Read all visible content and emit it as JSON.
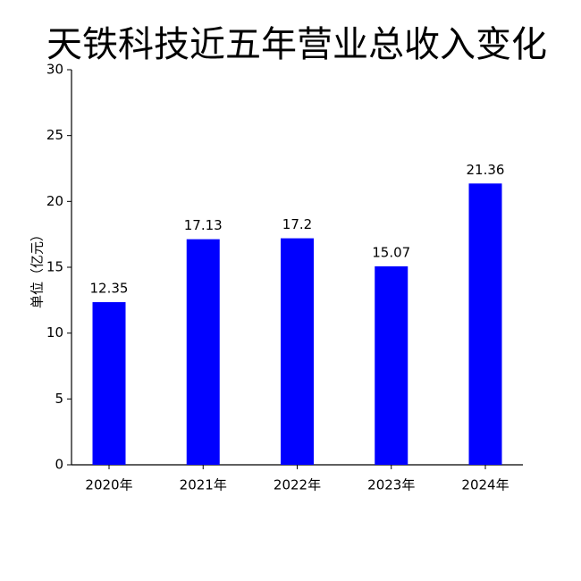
{
  "chart_data": {
    "type": "bar",
    "title": "天铁科技近五年营业总收入变化",
    "y_label": "单位（亿元）",
    "categories": [
      "2020年",
      "2021年",
      "2022年",
      "2023年",
      "2024年"
    ],
    "values": [
      12.35,
      17.13,
      17.2,
      15.07,
      21.36
    ],
    "color": "#0000ff",
    "ylim": [
      0,
      30
    ],
    "yticks": [
      0,
      5,
      10,
      15,
      20,
      25,
      30
    ],
    "grid": false
  }
}
